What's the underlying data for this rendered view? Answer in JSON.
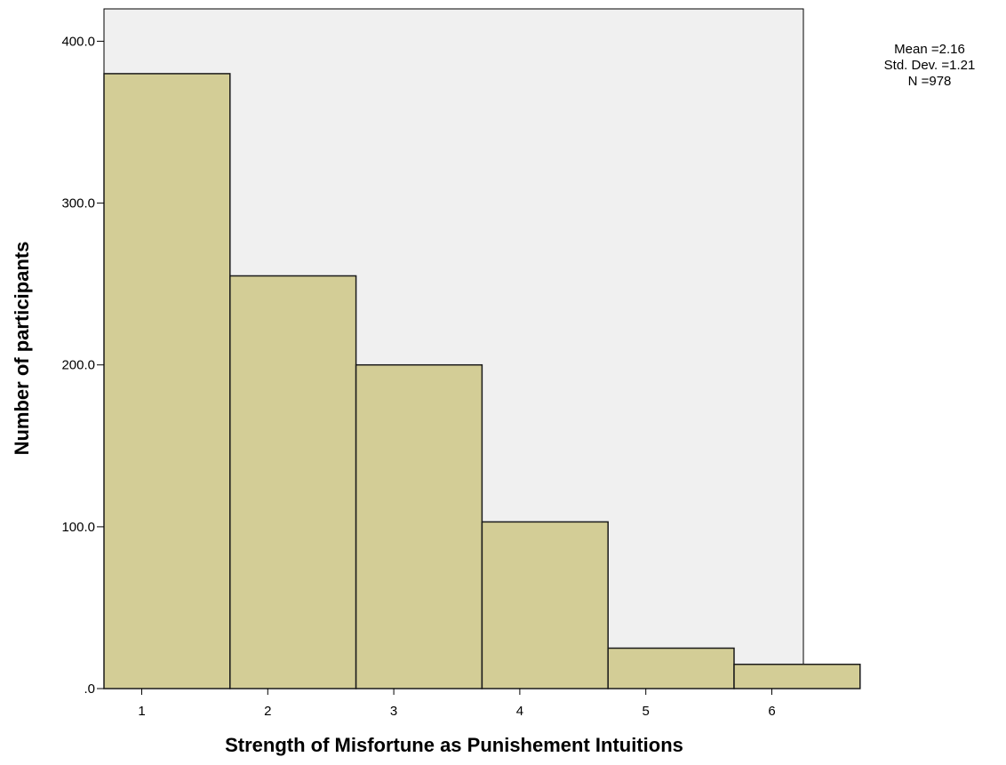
{
  "chart_data": {
    "type": "bar",
    "subtype": "histogram",
    "categories": [
      "1",
      "2",
      "3",
      "4",
      "5",
      "6"
    ],
    "values": [
      380,
      255,
      200,
      103,
      25,
      15
    ],
    "xlabel": "Strength of Misfortune as Punishement Intuitions",
    "ylabel": "Number of participants",
    "ylim": [
      0,
      420
    ],
    "yticks": [
      ".0",
      "100.0",
      "200.0",
      "300.0",
      "400.0"
    ],
    "ytick_values": [
      0,
      100,
      200,
      300,
      400
    ],
    "grid": false,
    "bar_color": "#d3cd96",
    "bar_edge_color": "#1a1a1a",
    "plot_background": "#f0f0f0",
    "stats": {
      "mean": "Mean =2.16",
      "std": "Std. Dev. =1.21",
      "n": "N =978"
    }
  }
}
